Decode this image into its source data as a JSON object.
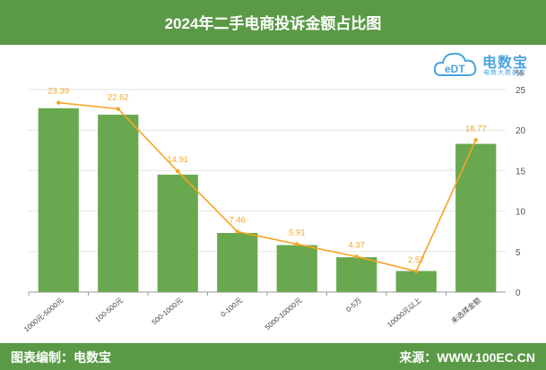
{
  "header": {
    "title": "2024年二手电商投诉金额占比图"
  },
  "footer": {
    "left": "图表编制：电数宝",
    "right": "来源：WWW.100EC.CN"
  },
  "logo": {
    "brand": "电数宝",
    "sub": "电商大数据库",
    "badge": "eDT"
  },
  "colors": {
    "bar": "#6aa84f",
    "line": "#f5a623",
    "header": "#5a9a46"
  },
  "chart_data": {
    "type": "bar",
    "categories": [
      "1000元-5000元",
      "100-500元",
      "500-1000元",
      "0-100元",
      "5000-10000元",
      "0-5万",
      "10000元以上",
      "未选择金额"
    ],
    "values": [
      22.7,
      21.9,
      14.5,
      7.3,
      5.8,
      4.3,
      2.6,
      18.3
    ],
    "series": [
      {
        "type": "line",
        "values": [
          23.39,
          22.62,
          14.91,
          7.46,
          5.91,
          4.37,
          2.57,
          18.77
        ],
        "labels": [
          "23.39",
          "22.62",
          "14.91",
          "7.46",
          "5.91",
          "4.37",
          "2.57",
          "18.77"
        ]
      }
    ],
    "ylim": [
      0,
      25
    ],
    "yticks": [
      0,
      5,
      10,
      15,
      20,
      25
    ],
    "ylabel": "%",
    "grid": true
  }
}
